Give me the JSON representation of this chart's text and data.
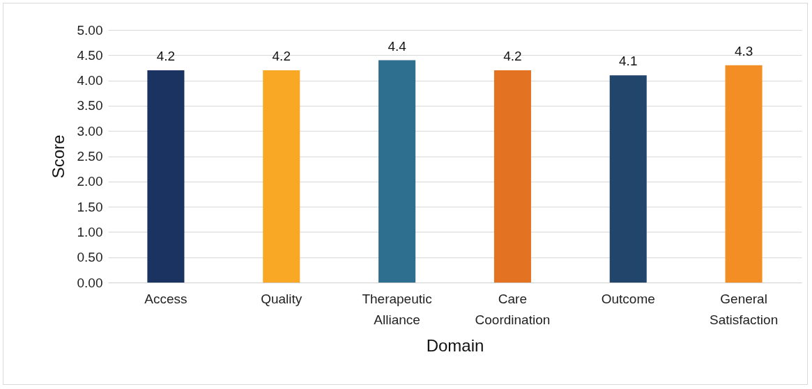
{
  "chart_data": {
    "type": "bar",
    "xlabel": "Domain",
    "ylabel": "Score",
    "categories": [
      "Access",
      "Quality",
      "Therapeutic Alliance",
      "Care Coordination",
      "Outcome",
      "General Satisfaction"
    ],
    "values": [
      4.2,
      4.2,
      4.4,
      4.2,
      4.1,
      4.3
    ],
    "colors": [
      "#1b3360",
      "#f9a825",
      "#2e6e8e",
      "#e37222",
      "#22456b",
      "#f28e23"
    ],
    "ylim": [
      0,
      5
    ],
    "yticks": [
      {
        "value": 0,
        "label": "0.00"
      },
      {
        "value": 0.5,
        "label": "0.50"
      },
      {
        "value": 1,
        "label": "1.00"
      },
      {
        "value": 1.5,
        "label": "1.50"
      },
      {
        "value": 2,
        "label": "2.00"
      },
      {
        "value": 2.5,
        "label": "2.50"
      },
      {
        "value": 3,
        "label": "3.00"
      },
      {
        "value": 3.5,
        "label": "3.50"
      },
      {
        "value": 4,
        "label": "4.00"
      },
      {
        "value": 4.5,
        "label": "4.50"
      },
      {
        "value": 5,
        "label": "5.00"
      }
    ],
    "grid": "y",
    "data_labels": true
  }
}
